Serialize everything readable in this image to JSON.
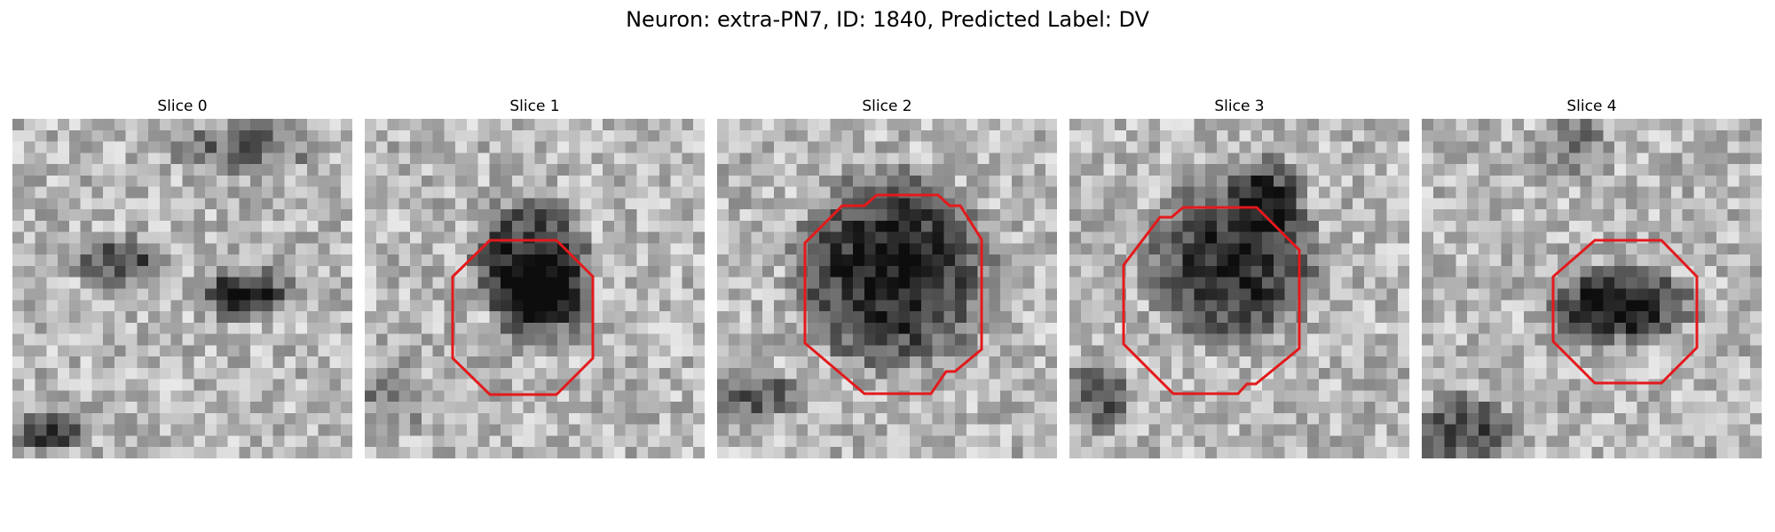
{
  "figure": {
    "title": "Neuron: extra-PN7, ID: 1840, Predicted Label: DV"
  },
  "slices": [
    {
      "title": "Slice 0",
      "outline": false
    },
    {
      "title": "Slice 1",
      "outline": true,
      "outline_color": "#e31a1c"
    },
    {
      "title": "Slice 2",
      "outline": true,
      "outline_color": "#e31a1c"
    },
    {
      "title": "Slice 3",
      "outline": true,
      "outline_color": "#e31a1c"
    },
    {
      "title": "Slice 4",
      "outline": true,
      "outline_color": "#e31a1c"
    }
  ],
  "colormap": "gray"
}
